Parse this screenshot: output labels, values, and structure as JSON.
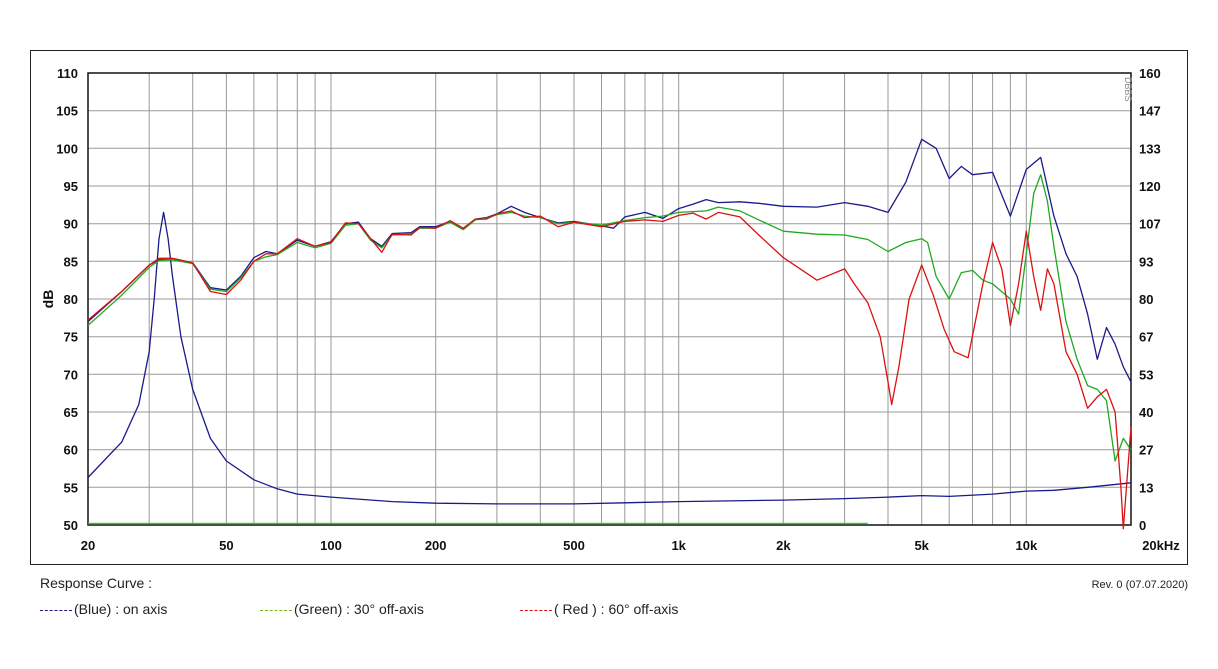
{
  "chart_data": {
    "type": "line",
    "y_left_label": "dB",
    "x_unit_label": "20kHz",
    "x_scale": "log",
    "xlim": [
      20,
      20000
    ],
    "ylim": [
      50,
      110
    ],
    "y_right_lim": [
      0,
      160
    ],
    "x_ticks": [
      {
        "v": 20,
        "label": "20"
      },
      {
        "v": 50,
        "label": "50"
      },
      {
        "v": 100,
        "label": "100"
      },
      {
        "v": 200,
        "label": "200"
      },
      {
        "v": 500,
        "label": "500"
      },
      {
        "v": 1000,
        "label": "1k"
      },
      {
        "v": 2000,
        "label": "2k"
      },
      {
        "v": 5000,
        "label": "5k"
      },
      {
        "v": 10000,
        "label": "10k"
      }
    ],
    "y_left_ticks": [
      "110",
      "105",
      "100",
      "95",
      "90",
      "85",
      "80",
      "75",
      "70",
      "65",
      "60",
      "55",
      "50"
    ],
    "y_right_ticks": [
      "160",
      "147",
      "133",
      "120",
      "107",
      "93",
      "80",
      "67",
      "53",
      "40",
      "27",
      "13",
      "0"
    ],
    "right_axis_note": "DBBS",
    "series": [
      {
        "name": "(Blue)  : on axis",
        "color": "#1a1a8c",
        "points": [
          [
            20,
            77
          ],
          [
            25,
            81
          ],
          [
            30,
            84.5
          ],
          [
            32,
            85.2
          ],
          [
            35,
            85.2
          ],
          [
            38,
            85
          ],
          [
            40,
            84.8
          ],
          [
            45,
            81.5
          ],
          [
            50,
            81.2
          ],
          [
            55,
            83
          ],
          [
            60,
            85.5
          ],
          [
            65,
            86.3
          ],
          [
            70,
            86
          ],
          [
            80,
            87.8
          ],
          [
            90,
            87
          ],
          [
            100,
            87.6
          ],
          [
            110,
            90
          ],
          [
            120,
            90.2
          ],
          [
            130,
            88
          ],
          [
            140,
            87
          ],
          [
            150,
            88.7
          ],
          [
            170,
            88.8
          ],
          [
            180,
            89.6
          ],
          [
            200,
            89.6
          ],
          [
            220,
            90.3
          ],
          [
            240,
            89.3
          ],
          [
            260,
            90.6
          ],
          [
            280,
            90.8
          ],
          [
            300,
            91.3
          ],
          [
            330,
            92.3
          ],
          [
            360,
            91.5
          ],
          [
            400,
            90.8
          ],
          [
            450,
            90.1
          ],
          [
            500,
            90.3
          ],
          [
            600,
            89.7
          ],
          [
            650,
            89.4
          ],
          [
            700,
            90.9
          ],
          [
            800,
            91.5
          ],
          [
            900,
            90.7
          ],
          [
            1000,
            92
          ],
          [
            1100,
            92.6
          ],
          [
            1200,
            93.2
          ],
          [
            1300,
            92.8
          ],
          [
            1500,
            92.9
          ],
          [
            1700,
            92.7
          ],
          [
            2000,
            92.3
          ],
          [
            2500,
            92.2
          ],
          [
            3000,
            92.8
          ],
          [
            3500,
            92.3
          ],
          [
            4000,
            91.5
          ],
          [
            4500,
            95.5
          ],
          [
            5000,
            101.2
          ],
          [
            5500,
            100
          ],
          [
            6000,
            96
          ],
          [
            6500,
            97.6
          ],
          [
            7000,
            96.5
          ],
          [
            8000,
            96.8
          ],
          [
            9000,
            91
          ],
          [
            10000,
            97.2
          ],
          [
            11000,
            98.8
          ],
          [
            12000,
            91
          ],
          [
            13000,
            86
          ],
          [
            14000,
            83
          ],
          [
            15000,
            78
          ],
          [
            16000,
            72
          ],
          [
            17000,
            76.2
          ],
          [
            18000,
            74
          ],
          [
            19000,
            71
          ],
          [
            20000,
            69
          ]
        ]
      },
      {
        "name": "(Green) : 30° off-axis",
        "color": "#1faa1f",
        "points": [
          [
            20,
            76.5
          ],
          [
            25,
            80.5
          ],
          [
            30,
            84.2
          ],
          [
            32,
            85.1
          ],
          [
            35,
            85.2
          ],
          [
            40,
            84.7
          ],
          [
            45,
            81.3
          ],
          [
            50,
            81
          ],
          [
            55,
            82.8
          ],
          [
            60,
            85
          ],
          [
            65,
            85.6
          ],
          [
            70,
            85.9
          ],
          [
            80,
            87.5
          ],
          [
            90,
            86.8
          ],
          [
            100,
            87.4
          ],
          [
            110,
            89.8
          ],
          [
            120,
            90
          ],
          [
            130,
            87.8
          ],
          [
            140,
            86.8
          ],
          [
            150,
            88.5
          ],
          [
            170,
            88.6
          ],
          [
            180,
            89.4
          ],
          [
            200,
            89.4
          ],
          [
            220,
            90.2
          ],
          [
            240,
            89.2
          ],
          [
            260,
            90.5
          ],
          [
            280,
            90.7
          ],
          [
            300,
            91.2
          ],
          [
            330,
            91.5
          ],
          [
            360,
            91
          ],
          [
            400,
            90.8
          ],
          [
            450,
            90
          ],
          [
            500,
            90.2
          ],
          [
            600,
            89.8
          ],
          [
            700,
            90.4
          ],
          [
            800,
            90.8
          ],
          [
            900,
            91
          ],
          [
            1000,
            91.5
          ],
          [
            1200,
            91.7
          ],
          [
            1300,
            92.2
          ],
          [
            1500,
            91.7
          ],
          [
            1700,
            90.5
          ],
          [
            2000,
            89
          ],
          [
            2500,
            88.6
          ],
          [
            3000,
            88.5
          ],
          [
            3500,
            87.9
          ],
          [
            4000,
            86.3
          ],
          [
            4500,
            87.5
          ],
          [
            5000,
            88
          ],
          [
            5200,
            87.5
          ],
          [
            5500,
            83
          ],
          [
            6000,
            80
          ],
          [
            6500,
            83.5
          ],
          [
            7000,
            83.8
          ],
          [
            7500,
            82.5
          ],
          [
            8000,
            82
          ],
          [
            9000,
            80
          ],
          [
            9500,
            78
          ],
          [
            10000,
            86
          ],
          [
            10500,
            94
          ],
          [
            11000,
            96.5
          ],
          [
            11500,
            93
          ],
          [
            12000,
            87
          ],
          [
            13000,
            77
          ],
          [
            14000,
            72
          ],
          [
            15000,
            68.5
          ],
          [
            16000,
            68
          ],
          [
            17000,
            66.5
          ],
          [
            18000,
            58.5
          ],
          [
            19000,
            61.5
          ],
          [
            20000,
            60
          ]
        ]
      },
      {
        "name": "( Red ) : 60° off-axis",
        "color": "#e01010",
        "points": [
          [
            20,
            77.2
          ],
          [
            25,
            81
          ],
          [
            30,
            84.5
          ],
          [
            32,
            85.4
          ],
          [
            35,
            85.4
          ],
          [
            40,
            84.8
          ],
          [
            45,
            81
          ],
          [
            50,
            80.6
          ],
          [
            55,
            82.5
          ],
          [
            60,
            85
          ],
          [
            65,
            86
          ],
          [
            70,
            86
          ],
          [
            80,
            88
          ],
          [
            90,
            87
          ],
          [
            100,
            87.5
          ],
          [
            110,
            90.1
          ],
          [
            120,
            90
          ],
          [
            130,
            88
          ],
          [
            140,
            86.2
          ],
          [
            150,
            88.6
          ],
          [
            170,
            88.5
          ],
          [
            180,
            89.5
          ],
          [
            200,
            89.4
          ],
          [
            220,
            90.4
          ],
          [
            240,
            89.4
          ],
          [
            260,
            90.6
          ],
          [
            280,
            90.6
          ],
          [
            300,
            91.3
          ],
          [
            330,
            91.7
          ],
          [
            360,
            90.8
          ],
          [
            400,
            91
          ],
          [
            450,
            89.6
          ],
          [
            500,
            90.2
          ],
          [
            600,
            89.6
          ],
          [
            700,
            90.3
          ],
          [
            800,
            90.5
          ],
          [
            900,
            90.3
          ],
          [
            1000,
            91.1
          ],
          [
            1100,
            91.4
          ],
          [
            1200,
            90.6
          ],
          [
            1300,
            91.5
          ],
          [
            1500,
            90.9
          ],
          [
            1700,
            88.5
          ],
          [
            2000,
            85.5
          ],
          [
            2500,
            82.5
          ],
          [
            3000,
            84
          ],
          [
            3200,
            82
          ],
          [
            3500,
            79.5
          ],
          [
            3800,
            75
          ],
          [
            4000,
            69
          ],
          [
            4100,
            66
          ],
          [
            4300,
            71
          ],
          [
            4600,
            80
          ],
          [
            5000,
            84.5
          ],
          [
            5400,
            80.5
          ],
          [
            5800,
            76
          ],
          [
            6200,
            73
          ],
          [
            6800,
            72.2
          ],
          [
            7500,
            82
          ],
          [
            8000,
            87.5
          ],
          [
            8500,
            84
          ],
          [
            9000,
            76.5
          ],
          [
            9500,
            82
          ],
          [
            10000,
            89
          ],
          [
            10500,
            83
          ],
          [
            11000,
            78.5
          ],
          [
            11500,
            84
          ],
          [
            12000,
            82
          ],
          [
            13000,
            73
          ],
          [
            14000,
            70
          ],
          [
            15000,
            65.5
          ],
          [
            16000,
            67
          ],
          [
            17000,
            68
          ],
          [
            18000,
            65
          ],
          [
            18700,
            55
          ],
          [
            19000,
            49.5
          ],
          [
            20000,
            63
          ]
        ]
      },
      {
        "name": "impedance",
        "color": "#1a1a8c",
        "axis": "right",
        "points": [
          [
            20,
            56.3
          ],
          [
            25,
            61
          ],
          [
            28,
            66
          ],
          [
            30,
            73
          ],
          [
            31,
            80
          ],
          [
            32,
            88
          ],
          [
            33,
            91.5
          ],
          [
            34,
            88
          ],
          [
            35,
            83
          ],
          [
            37,
            75
          ],
          [
            40,
            68
          ],
          [
            45,
            61.5
          ],
          [
            50,
            58.5
          ],
          [
            60,
            56
          ],
          [
            70,
            54.8
          ],
          [
            80,
            54.1
          ],
          [
            100,
            53.7
          ],
          [
            150,
            53.1
          ],
          [
            200,
            52.9
          ],
          [
            300,
            52.8
          ],
          [
            500,
            52.8
          ],
          [
            700,
            52.95
          ],
          [
            1000,
            53.1
          ],
          [
            2000,
            53.3
          ],
          [
            3000,
            53.5
          ],
          [
            4000,
            53.7
          ],
          [
            5000,
            53.9
          ],
          [
            6000,
            53.8
          ],
          [
            8000,
            54.1
          ],
          [
            10000,
            54.5
          ],
          [
            12000,
            54.6
          ],
          [
            15000,
            55
          ],
          [
            20000,
            55.6
          ]
        ]
      },
      {
        "name": "baseline",
        "color": "#3ec23e",
        "points": [
          [
            20,
            50.2
          ],
          [
            3500,
            50.2
          ]
        ]
      }
    ]
  },
  "legend": {
    "title": "Response Curve :",
    "revision": "Rev. 0 (07.07.2020)",
    "items": [
      {
        "label": "(Blue)  : on axis",
        "color": "#1a1a8c"
      },
      {
        "label": "(Green) : 30° off-axis",
        "color": "#7ab820"
      },
      {
        "label": "( Red ) : 60° off-axis",
        "color": "#e01010"
      }
    ]
  }
}
